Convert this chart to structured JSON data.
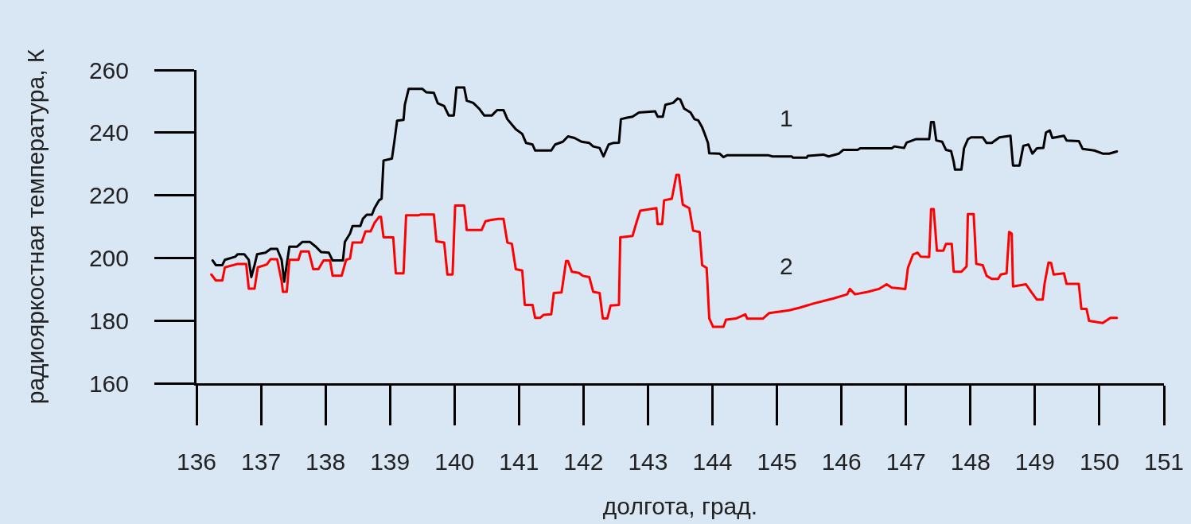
{
  "chart_data": {
    "type": "line",
    "xlabel": "долгота, град.",
    "ylabel": "радиояркостная температура, К",
    "xlim": [
      136,
      151
    ],
    "ylim": [
      160,
      260
    ],
    "xticks": [
      136,
      137,
      138,
      139,
      140,
      141,
      142,
      143,
      144,
      145,
      146,
      147,
      148,
      149,
      150,
      151
    ],
    "yticks": [
      160,
      180,
      200,
      220,
      240,
      260
    ],
    "grid": false,
    "legend": false,
    "series": [
      {
        "name": "1",
        "color": "#000000",
        "x": [
          136.25,
          136.3,
          136.4,
          136.44,
          136.6,
          136.64,
          136.74,
          136.81,
          136.85,
          136.9,
          136.94,
          137.07,
          137.15,
          137.25,
          137.32,
          137.36,
          137.44,
          137.56,
          137.64,
          137.76,
          137.85,
          137.93,
          138.05,
          138.11,
          138.27,
          138.3,
          138.38,
          138.42,
          138.54,
          138.58,
          138.64,
          138.72,
          138.76,
          138.83,
          138.87,
          138.9,
          139.03,
          139.07,
          139.11,
          139.21,
          139.23,
          139.29,
          139.5,
          139.56,
          139.68,
          139.74,
          139.84,
          139.91,
          139.99,
          140.03,
          140.15,
          140.19,
          140.29,
          140.38,
          140.46,
          140.58,
          140.66,
          140.76,
          140.82,
          140.95,
          141.05,
          141.11,
          141.21,
          141.25,
          141.5,
          141.56,
          141.68,
          141.76,
          141.86,
          141.97,
          142.09,
          142.15,
          142.25,
          142.31,
          142.39,
          142.46,
          142.55,
          142.58,
          142.66,
          142.76,
          142.86,
          143.11,
          143.15,
          143.23,
          143.27,
          143.39,
          143.46,
          143.5,
          143.56,
          143.66,
          143.72,
          143.78,
          143.84,
          143.88,
          143.93,
          143.95,
          144.11,
          144.17,
          144.23,
          144.86,
          144.93,
          145.23,
          145.25,
          145.46,
          145.48,
          145.72,
          145.8,
          145.96,
          146.03,
          146.25,
          146.29,
          146.78,
          146.82,
          146.97,
          147.01,
          147.15,
          147.36,
          147.39,
          147.43,
          147.47,
          147.56,
          147.62,
          147.7,
          147.74,
          147.76,
          147.86,
          147.9,
          147.96,
          148.01,
          148.19,
          148.25,
          148.33,
          148.45,
          148.62,
          148.66,
          148.76,
          148.82,
          148.9,
          148.96,
          149.03,
          149.13,
          149.17,
          149.23,
          149.27,
          149.45,
          149.49,
          149.68,
          149.74,
          149.92,
          150.05,
          150.15,
          150.27
        ],
        "values": [
          199.2,
          197.7,
          197.7,
          199.4,
          200.4,
          201.2,
          201.2,
          199.4,
          193.9,
          197.7,
          201.2,
          201.7,
          202.9,
          202.9,
          199.4,
          192.4,
          203.6,
          203.6,
          205.1,
          205.1,
          203.6,
          201.9,
          201.7,
          199.2,
          199.2,
          205.1,
          207.8,
          210.2,
          210.2,
          212.5,
          213.8,
          213.8,
          215.9,
          218.4,
          218.9,
          231.1,
          231.7,
          237.5,
          243.8,
          244.1,
          248.9,
          254.0,
          254.0,
          252.9,
          252.7,
          249.4,
          248.5,
          245.5,
          245.5,
          254.4,
          254.4,
          250.2,
          249.5,
          247.7,
          245.5,
          245.5,
          247.2,
          247.2,
          244.3,
          241.1,
          239.6,
          236.7,
          236.2,
          234.3,
          234.3,
          236.2,
          237.1,
          238.8,
          238.3,
          237.1,
          236.7,
          235.6,
          235.1,
          232.4,
          236.2,
          236.7,
          236.8,
          244.3,
          244.7,
          245.1,
          246.4,
          246.8,
          245.1,
          245.1,
          248.9,
          249.5,
          250.9,
          250.6,
          247.7,
          246.4,
          244.3,
          243.9,
          241.7,
          239.6,
          236.7,
          233.4,
          233.3,
          232.2,
          232.8,
          232.8,
          232.4,
          232.4,
          232.0,
          232.0,
          232.6,
          233.0,
          232.4,
          233.3,
          234.5,
          234.5,
          235.0,
          235.0,
          235.6,
          235.1,
          236.8,
          237.9,
          237.9,
          243.4,
          243.4,
          237.5,
          237.1,
          234.5,
          234.1,
          230.7,
          228.2,
          228.2,
          235.0,
          237.9,
          238.5,
          238.5,
          236.7,
          236.7,
          238.5,
          239.0,
          229.5,
          229.5,
          235.8,
          236.2,
          233.3,
          235.0,
          235.1,
          240.0,
          240.7,
          238.3,
          239.0,
          237.5,
          237.3,
          234.8,
          234.3,
          233.3,
          233.3,
          234.0
        ]
      },
      {
        "name": "2",
        "color": "#ff0000",
        "x": [
          136.23,
          136.3,
          136.4,
          136.44,
          136.64,
          136.77,
          136.81,
          136.9,
          136.95,
          137.09,
          137.15,
          137.25,
          137.32,
          137.34,
          137.4,
          137.44,
          137.58,
          137.62,
          137.74,
          137.81,
          137.89,
          137.97,
          138.07,
          138.11,
          138.25,
          138.32,
          138.38,
          138.42,
          138.56,
          138.62,
          138.7,
          138.76,
          138.83,
          138.86,
          138.9,
          139.05,
          139.09,
          139.21,
          139.25,
          139.44,
          139.48,
          139.68,
          139.72,
          139.84,
          139.89,
          139.97,
          140.01,
          140.15,
          140.19,
          140.42,
          140.48,
          140.56,
          140.68,
          140.76,
          140.82,
          140.89,
          140.95,
          141.05,
          141.09,
          141.21,
          141.25,
          141.33,
          141.38,
          141.5,
          141.54,
          141.66,
          141.73,
          141.76,
          141.82,
          141.93,
          141.99,
          142.09,
          142.15,
          142.25,
          142.3,
          142.37,
          142.42,
          142.55,
          142.57,
          142.76,
          142.82,
          142.88,
          143.13,
          143.15,
          143.22,
          143.25,
          143.37,
          143.44,
          143.48,
          143.54,
          143.64,
          143.7,
          143.8,
          143.84,
          143.91,
          143.95,
          144.01,
          144.17,
          144.21,
          144.37,
          144.51,
          144.54,
          144.78,
          144.88,
          145.19,
          145.35,
          145.56,
          145.88,
          146.09,
          146.13,
          146.21,
          146.41,
          146.58,
          146.7,
          146.78,
          146.99,
          147.03,
          147.11,
          147.18,
          147.23,
          147.36,
          147.39,
          147.43,
          147.48,
          147.58,
          147.62,
          147.71,
          147.74,
          147.86,
          147.94,
          147.96,
          148.05,
          148.09,
          148.19,
          148.25,
          148.33,
          148.43,
          148.47,
          148.56,
          148.6,
          148.64,
          148.66,
          148.86,
          148.94,
          149.03,
          149.12,
          149.15,
          149.21,
          149.25,
          149.29,
          149.45,
          149.49,
          149.68,
          149.72,
          149.8,
          149.84,
          150.05,
          150.17,
          150.27
        ],
        "values": [
          194.7,
          192.8,
          192.8,
          197.0,
          198.1,
          198.1,
          190.2,
          190.2,
          197.0,
          197.9,
          199.6,
          199.6,
          192.6,
          189.2,
          189.2,
          199.4,
          199.4,
          202.1,
          202.1,
          196.4,
          196.4,
          199.2,
          199.2,
          194.3,
          194.3,
          199.4,
          199.8,
          204.9,
          204.9,
          208.5,
          208.5,
          211.2,
          213.1,
          213.1,
          206.6,
          206.6,
          195.1,
          195.1,
          213.6,
          213.6,
          213.9,
          213.9,
          205.3,
          204.9,
          194.7,
          194.7,
          216.7,
          216.7,
          208.9,
          208.9,
          211.7,
          212.1,
          212.5,
          212.5,
          204.9,
          204.5,
          196.4,
          196.0,
          185.0,
          185.0,
          180.9,
          180.9,
          181.8,
          182.0,
          188.8,
          189.0,
          199.0,
          199.0,
          195.6,
          195.2,
          194.3,
          193.9,
          189.2,
          188.8,
          180.7,
          180.7,
          184.8,
          185.0,
          206.6,
          207.0,
          211.2,
          215.1,
          215.9,
          210.8,
          210.8,
          218.4,
          218.9,
          226.5,
          226.5,
          217.0,
          215.9,
          208.7,
          208.3,
          197.7,
          196.8,
          180.7,
          178.0,
          178.0,
          180.3,
          180.7,
          182.0,
          180.6,
          180.6,
          182.4,
          183.3,
          184.1,
          185.4,
          187.1,
          188.4,
          190.1,
          188.4,
          189.2,
          190.1,
          191.6,
          190.5,
          190.1,
          196.8,
          201.1,
          201.7,
          200.4,
          200.3,
          215.6,
          215.6,
          202.3,
          202.3,
          204.5,
          204.5,
          195.6,
          195.6,
          197.3,
          214.0,
          214.0,
          198.1,
          197.7,
          194.3,
          193.3,
          193.3,
          194.7,
          195.1,
          208.3,
          207.8,
          190.9,
          191.6,
          189.2,
          186.7,
          186.7,
          191.9,
          198.5,
          198.4,
          194.7,
          195.1,
          191.7,
          191.7,
          183.7,
          183.7,
          179.9,
          179.2,
          180.9,
          180.9
        ]
      }
    ]
  }
}
